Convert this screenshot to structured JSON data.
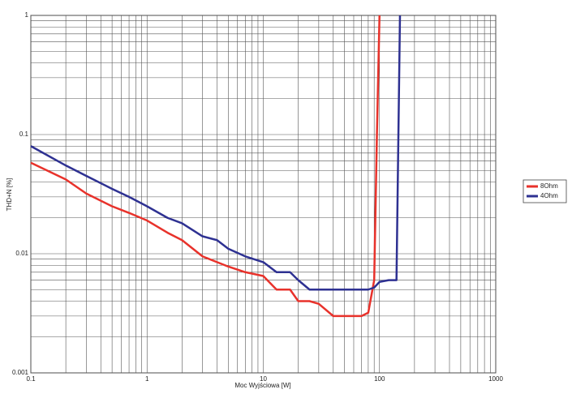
{
  "chart_data": {
    "type": "line",
    "x_label": "Moc Wyjściowa [W]",
    "y_label": "THD+N [%]",
    "x": [
      0.1,
      0.2,
      0.3,
      0.5,
      0.7,
      1,
      1.5,
      2,
      3,
      4,
      5,
      7,
      10,
      13,
      17,
      20,
      25,
      30,
      40,
      50,
      70,
      80,
      90,
      95,
      100,
      120,
      140,
      150
    ],
    "series": [
      {
        "name": "8Ohm",
        "color": "#e8322b",
        "values": [
          0.058,
          0.042,
          0.032,
          0.025,
          0.022,
          0.019,
          0.015,
          0.013,
          0.0095,
          0.0085,
          0.0078,
          0.007,
          0.0065,
          0.005,
          0.005,
          0.004,
          0.004,
          0.0038,
          0.003,
          0.003,
          0.003,
          0.0032,
          0.006,
          0.1,
          1,
          null,
          null,
          null
        ]
      },
      {
        "name": "4Ohm",
        "color": "#2e3192",
        "values": [
          0.08,
          0.055,
          0.045,
          0.035,
          0.03,
          0.025,
          0.02,
          0.018,
          0.014,
          0.013,
          0.011,
          0.0095,
          0.0085,
          0.007,
          0.007,
          0.006,
          0.005,
          0.005,
          0.005,
          0.005,
          0.005,
          0.005,
          0.0052,
          0.0055,
          0.0058,
          0.006,
          0.006,
          1
        ]
      }
    ],
    "xlim": [
      0.1,
      1000
    ],
    "ylim": [
      0.001,
      1
    ],
    "xticks": [
      0.1,
      1,
      10,
      100,
      1000
    ],
    "yticks": [
      0.001,
      0.01,
      0.1,
      1
    ],
    "x_log": true,
    "y_log": true,
    "grid": true,
    "minor_grid": true,
    "legend": "right"
  }
}
